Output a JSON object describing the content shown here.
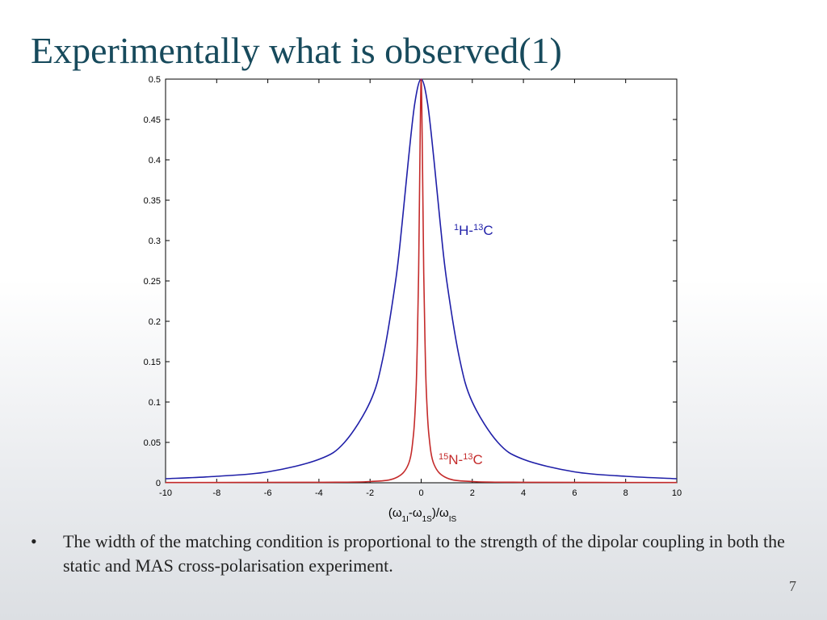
{
  "slide": {
    "title": "Experimentally what is observed(1)",
    "bullet_symbol": "•",
    "bullet_text": "The width of the matching condition is proportional to the strength of the dipolar coupling in both the static and MAS cross-polarisation experiment.",
    "page_number": "7"
  },
  "chart_data": {
    "type": "line",
    "title": "",
    "xlabel_parts": {
      "open": "(ω",
      "sub1": "1I",
      "mid": "-ω",
      "sub2": "1S",
      "close": ")/ω",
      "sub3": "IS"
    },
    "ylabel": "",
    "xlim": [
      -10,
      10
    ],
    "ylim": [
      0,
      0.5
    ],
    "x_ticks": [
      -10,
      -8,
      -6,
      -4,
      -2,
      0,
      2,
      4,
      6,
      8,
      10
    ],
    "y_ticks": [
      0,
      0.05,
      0.1,
      0.15,
      0.2,
      0.25,
      0.3,
      0.35,
      0.4,
      0.45,
      0.5
    ],
    "grid": false,
    "colors": {
      "blue": "#1f1fa8",
      "red": "#c42a2a"
    },
    "series": [
      {
        "label_parts": {
          "sup1": "1",
          "base1": "H-",
          "sup2": "13",
          "base2": "C"
        },
        "color": "#1f1fa8",
        "x": [
          -10,
          -8,
          -6,
          -4,
          -3,
          -2,
          -1.5,
          -1,
          -0.75,
          -0.5,
          -0.25,
          0,
          0.25,
          0.5,
          0.75,
          1,
          1.5,
          2,
          3,
          4,
          6,
          8,
          10
        ],
        "y": [
          0.005,
          0.008,
          0.0135,
          0.029,
          0.05,
          0.1,
          0.154,
          0.25,
          0.32,
          0.4,
          0.47,
          0.5,
          0.47,
          0.4,
          0.32,
          0.25,
          0.154,
          0.1,
          0.05,
          0.029,
          0.0135,
          0.008,
          0.005
        ]
      },
      {
        "label_parts": {
          "sup1": "15",
          "base1": "N-",
          "sup2": "13",
          "base2": "C"
        },
        "color": "#c42a2a",
        "x": [
          -10,
          -4,
          -2,
          -1,
          -0.5,
          -0.3,
          -0.2,
          -0.15,
          -0.1,
          -0.05,
          0,
          0.05,
          0.1,
          0.15,
          0.2,
          0.3,
          0.5,
          1,
          2,
          4,
          10
        ],
        "y": [
          0.0003,
          0.0006,
          0.0015,
          0.006,
          0.023,
          0.06,
          0.115,
          0.175,
          0.26,
          0.4,
          0.5,
          0.4,
          0.26,
          0.175,
          0.115,
          0.06,
          0.023,
          0.006,
          0.0015,
          0.0006,
          0.0003
        ]
      }
    ]
  }
}
